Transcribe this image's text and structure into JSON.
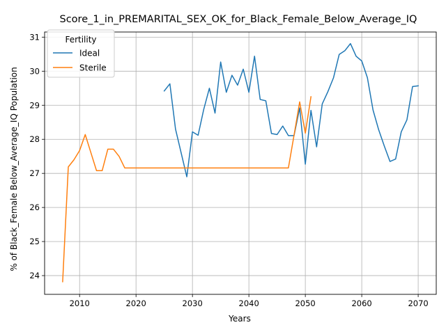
{
  "chart_data": {
    "type": "line",
    "title": "Score_1_in_PREMARITAL_SEX_OK_for_Black_Female_Below_Average_IQ",
    "xlabel": "Years",
    "ylabel": "% of Black_Female Below_Average_IQ Population",
    "xlim": [
      2003.8,
      2073.2
    ],
    "ylim": [
      23.45,
      31.15
    ],
    "xticks": [
      2010,
      2020,
      2030,
      2040,
      2050,
      2060,
      2070
    ],
    "yticks": [
      24,
      25,
      26,
      27,
      28,
      29,
      30,
      31
    ],
    "grid": true,
    "legend": {
      "title": "Fertility",
      "position": "top-left"
    },
    "series": [
      {
        "name": "Ideal",
        "color": "#1f77b4",
        "points": [
          [
            2025,
            29.42
          ],
          [
            2026,
            29.63
          ],
          [
            2027,
            28.3
          ],
          [
            2028,
            27.6
          ],
          [
            2029,
            26.9
          ],
          [
            2030,
            28.22
          ],
          [
            2031,
            28.12
          ],
          [
            2032,
            28.88
          ],
          [
            2033,
            29.5
          ],
          [
            2034,
            28.77
          ],
          [
            2035,
            30.27
          ],
          [
            2036,
            29.38
          ],
          [
            2037,
            29.88
          ],
          [
            2038,
            29.59
          ],
          [
            2039,
            30.06
          ],
          [
            2040,
            29.38
          ],
          [
            2041,
            30.44
          ],
          [
            2042,
            29.17
          ],
          [
            2043,
            29.13
          ],
          [
            2044,
            28.17
          ],
          [
            2045,
            28.14
          ],
          [
            2046,
            28.39
          ],
          [
            2047,
            28.11
          ],
          [
            2048,
            28.11
          ],
          [
            2049,
            28.92
          ],
          [
            2050,
            27.27
          ],
          [
            2051,
            28.85
          ],
          [
            2052,
            27.78
          ],
          [
            2053,
            29.04
          ],
          [
            2054,
            29.4
          ],
          [
            2055,
            29.81
          ],
          [
            2056,
            30.49
          ],
          [
            2057,
            30.6
          ],
          [
            2058,
            30.81
          ],
          [
            2059,
            30.44
          ],
          [
            2060,
            30.3
          ],
          [
            2061,
            29.81
          ],
          [
            2062,
            28.86
          ],
          [
            2063,
            28.28
          ],
          [
            2064,
            27.8
          ],
          [
            2065,
            27.35
          ],
          [
            2066,
            27.42
          ],
          [
            2067,
            28.22
          ],
          [
            2068,
            28.57
          ],
          [
            2069,
            29.55
          ],
          [
            2070,
            29.57
          ]
        ]
      },
      {
        "name": "Sterile",
        "color": "#ff7f0e",
        "points": [
          [
            2007,
            23.82
          ],
          [
            2008,
            27.19
          ],
          [
            2009,
            27.4
          ],
          [
            2010,
            27.67
          ],
          [
            2011,
            28.14
          ],
          [
            2012,
            27.61
          ],
          [
            2013,
            27.08
          ],
          [
            2014,
            27.08
          ],
          [
            2015,
            27.71
          ],
          [
            2016,
            27.71
          ],
          [
            2017,
            27.5
          ],
          [
            2018,
            27.16
          ],
          [
            2019,
            27.16
          ],
          [
            2020,
            27.16
          ],
          [
            2021,
            27.16
          ],
          [
            2022,
            27.16
          ],
          [
            2023,
            27.16
          ],
          [
            2024,
            27.16
          ],
          [
            2025,
            27.16
          ],
          [
            2026,
            27.16
          ],
          [
            2027,
            27.16
          ],
          [
            2028,
            27.16
          ],
          [
            2029,
            27.16
          ],
          [
            2030,
            27.16
          ],
          [
            2031,
            27.16
          ],
          [
            2032,
            27.16
          ],
          [
            2033,
            27.16
          ],
          [
            2034,
            27.16
          ],
          [
            2035,
            27.16
          ],
          [
            2036,
            27.16
          ],
          [
            2037,
            27.16
          ],
          [
            2038,
            27.16
          ],
          [
            2039,
            27.16
          ],
          [
            2040,
            27.16
          ],
          [
            2041,
            27.16
          ],
          [
            2042,
            27.16
          ],
          [
            2043,
            27.16
          ],
          [
            2044,
            27.16
          ],
          [
            2045,
            27.16
          ],
          [
            2046,
            27.16
          ],
          [
            2047,
            27.16
          ],
          [
            2048,
            28.12
          ],
          [
            2049,
            29.1
          ],
          [
            2050,
            28.18
          ],
          [
            2051,
            29.25
          ]
        ]
      }
    ]
  }
}
